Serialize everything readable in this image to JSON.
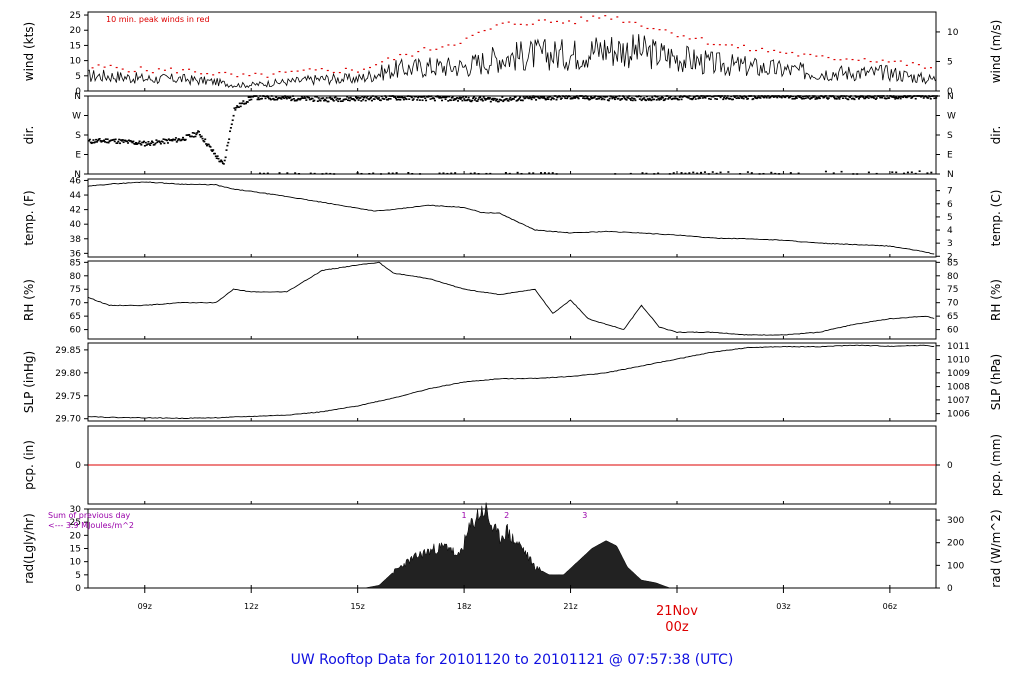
{
  "footer_title": "UW Rooftop Data for 20101120  to  20101121 @ 07:57:38  (UTC)",
  "colors": {
    "axis": "#000000",
    "peak": "#dd0000",
    "zero_line": "#dd0000",
    "annot": "#9900aa",
    "footer": "#1010e0",
    "fill": "#222222"
  },
  "x_axis": {
    "hours_range": [
      7.4,
      31.3
    ],
    "ticks": [
      {
        "h": 9,
        "label": "09z"
      },
      {
        "h": 12,
        "label": "12z"
      },
      {
        "h": 15,
        "label": "15z"
      },
      {
        "h": 18,
        "label": "18z"
      },
      {
        "h": 21,
        "label": "21z"
      },
      {
        "h": 24,
        "label": ""
      },
      {
        "h": 27,
        "label": "03z"
      },
      {
        "h": 30,
        "label": "06z"
      }
    ],
    "date_marker": {
      "h": 24,
      "date": "21Nov",
      "time": "00z"
    }
  },
  "chart_data": [
    {
      "type": "line",
      "id": "wind",
      "ylabel": "wind (kts)",
      "ylabel_right": "wind (m/s)",
      "ylim": [
        0,
        26
      ],
      "yticks": [
        0,
        5,
        10,
        15,
        20,
        25
      ],
      "right_ticks": [
        {
          "v": 0,
          "label": "0"
        },
        {
          "v": 9.72,
          "label": "5"
        },
        {
          "v": 19.44,
          "label": "10"
        }
      ],
      "annotation": "10 min. peak winds in red",
      "series": [
        {
          "role": "mean",
          "x": [
            7.4,
            8,
            9,
            10,
            11,
            11.5,
            12,
            13,
            14,
            15,
            16,
            17,
            18,
            19,
            20,
            21,
            22,
            23,
            24,
            25,
            26,
            27,
            28,
            29,
            30,
            31,
            31.3
          ],
          "y": [
            5,
            5,
            4,
            4,
            3,
            2,
            2,
            3,
            4,
            4,
            7,
            8,
            8,
            11,
            12,
            12,
            14,
            13,
            11,
            9,
            8,
            7,
            6,
            6,
            6,
            4,
            4
          ]
        },
        {
          "role": "peak",
          "x": [
            7.4,
            8,
            9,
            10,
            11,
            11.5,
            12,
            13,
            14,
            15,
            16,
            17,
            18,
            19,
            20,
            21,
            22,
            23,
            24,
            25,
            26,
            27,
            28,
            29,
            30,
            31,
            31.3
          ],
          "y": [
            8,
            8,
            7,
            7,
            6,
            5,
            5,
            6,
            7,
            7,
            11,
            14,
            17,
            22,
            23,
            23,
            25,
            22,
            19,
            16,
            14,
            13,
            11,
            11,
            10,
            8,
            8
          ]
        }
      ]
    },
    {
      "type": "scatter",
      "id": "dir",
      "ylabel": "dir.",
      "ylabel_right": "dir.",
      "ylim": [
        0,
        360
      ],
      "ytick_labels": [
        {
          "v": 0,
          "label": "N"
        },
        {
          "v": 90,
          "label": "E"
        },
        {
          "v": 180,
          "label": "S"
        },
        {
          "v": 270,
          "label": "W"
        },
        {
          "v": 360,
          "label": "N"
        }
      ],
      "right_tick_labels": [
        {
          "v": 0,
          "label": "N"
        },
        {
          "v": 90,
          "label": "E"
        },
        {
          "v": 180,
          "label": "S"
        },
        {
          "v": 270,
          "label": "W"
        },
        {
          "v": 360,
          "label": "N"
        }
      ],
      "series": [
        {
          "role": "main",
          "x": [
            7.4,
            8,
            9,
            10,
            10.5,
            11,
            11.2,
            11.5,
            12,
            13,
            14,
            15,
            16,
            17,
            18,
            19,
            20,
            21,
            22,
            23,
            24,
            25,
            26,
            27,
            28,
            29,
            30,
            31,
            31.3
          ],
          "y": [
            150,
            155,
            140,
            160,
            190,
            80,
            40,
            300,
            355,
            350,
            345,
            348,
            352,
            350,
            346,
            344,
            350,
            355,
            350,
            350,
            352,
            356,
            354,
            358,
            356,
            355,
            357,
            358,
            358
          ]
        },
        {
          "role": "low",
          "x": [
            12,
            13,
            14,
            15,
            16,
            17,
            18,
            19,
            20,
            21,
            22,
            23,
            24,
            25,
            26,
            27,
            28,
            29,
            30,
            31
          ],
          "y": [
            8,
            6,
            4,
            6,
            5,
            7,
            4,
            6,
            8,
            5,
            4,
            6,
            8,
            10,
            12,
            10,
            12,
            14,
            12,
            14
          ]
        }
      ]
    },
    {
      "type": "line",
      "id": "temp",
      "ylabel": "temp. (F)",
      "ylabel_right": "temp. (C)",
      "ylim": [
        35.5,
        46.2
      ],
      "yticks": [
        36,
        38,
        40,
        42,
        44,
        46
      ],
      "right_ticks": [
        {
          "v": 35.6,
          "label": "2"
        },
        {
          "v": 37.4,
          "label": "3"
        },
        {
          "v": 39.2,
          "label": "4"
        },
        {
          "v": 41.0,
          "label": "5"
        },
        {
          "v": 42.8,
          "label": "6"
        },
        {
          "v": 44.6,
          "label": "7"
        }
      ],
      "series": [
        {
          "role": "main",
          "x": [
            7.4,
            8,
            9,
            10,
            11,
            11.5,
            12,
            13,
            14,
            15,
            15.5,
            16,
            17,
            18,
            18.5,
            19,
            20,
            21,
            22,
            23,
            24,
            25,
            26,
            27,
            28,
            29,
            30,
            31,
            31.3
          ],
          "y": [
            45.2,
            45.5,
            45.8,
            45.5,
            45.4,
            44.8,
            44.5,
            43.8,
            43.0,
            42.2,
            41.8,
            42.0,
            42.6,
            42.3,
            41.6,
            41.5,
            39.2,
            38.8,
            39.0,
            38.8,
            38.5,
            38.1,
            38.0,
            37.8,
            37.4,
            37.2,
            37.0,
            36.2,
            35.8
          ]
        }
      ]
    },
    {
      "type": "line",
      "id": "rh",
      "ylabel": "RH (%)",
      "ylabel_right": "RH (%)",
      "ylim": [
        56.5,
        85.5
      ],
      "yticks": [
        60,
        65,
        70,
        75,
        80,
        85
      ],
      "right_ticks": [
        {
          "v": 60,
          "label": "60"
        },
        {
          "v": 65,
          "label": "65"
        },
        {
          "v": 70,
          "label": "70"
        },
        {
          "v": 75,
          "label": "75"
        },
        {
          "v": 80,
          "label": "80"
        },
        {
          "v": 85,
          "label": "85"
        }
      ],
      "series": [
        {
          "role": "main",
          "x": [
            7.4,
            8,
            9,
            10,
            11,
            11.5,
            12,
            13,
            14,
            15,
            15.6,
            16,
            17,
            18,
            19,
            19.5,
            20,
            20.5,
            21,
            21.5,
            22,
            22.5,
            23,
            23.5,
            24,
            25,
            26,
            27,
            28,
            29,
            30,
            31,
            31.3
          ],
          "y": [
            72,
            69,
            69,
            70,
            70,
            75,
            74,
            74,
            82,
            84,
            85,
            81,
            79,
            75,
            73,
            74,
            75,
            66,
            71,
            64,
            62,
            60,
            69,
            61,
            59,
            59,
            58,
            58,
            59,
            62,
            64,
            65,
            64
          ]
        }
      ]
    },
    {
      "type": "line",
      "id": "slp",
      "ylabel": "SLP (inHg)",
      "ylabel_right": "SLP (hPa)",
      "ylim": [
        29.695,
        29.865
      ],
      "yticks": [
        29.7,
        29.75,
        29.8,
        29.85
      ],
      "ytick_labels": [
        "29.70",
        "29.75",
        "29.80",
        "29.85"
      ],
      "right_ticks": [
        {
          "v": 29.711,
          "label": "1006"
        },
        {
          "v": 29.741,
          "label": "1007"
        },
        {
          "v": 29.77,
          "label": "1008"
        },
        {
          "v": 29.8,
          "label": "1009"
        },
        {
          "v": 29.829,
          "label": "1010"
        },
        {
          "v": 29.859,
          "label": "1011"
        }
      ],
      "series": [
        {
          "role": "main",
          "x": [
            7.4,
            8,
            9,
            10,
            11,
            12,
            13,
            14,
            15,
            16,
            17,
            18,
            19,
            20,
            21,
            22,
            23,
            24,
            25,
            26,
            27,
            28,
            29,
            30,
            31,
            31.3
          ],
          "y": [
            29.705,
            29.703,
            29.702,
            29.701,
            29.702,
            29.705,
            29.708,
            29.715,
            29.728,
            29.745,
            29.765,
            29.78,
            29.787,
            29.788,
            29.792,
            29.8,
            29.815,
            29.83,
            29.845,
            29.855,
            29.857,
            29.857,
            29.86,
            29.858,
            29.86,
            29.857
          ]
        }
      ]
    },
    {
      "type": "line",
      "id": "pcp",
      "ylabel": "pcp. (in)",
      "ylabel_right": "pcp. (mm)",
      "ylim": [
        -1,
        1
      ],
      "yticks": [
        0
      ],
      "right_ticks": [
        {
          "v": 0,
          "label": "0"
        }
      ],
      "series": [
        {
          "role": "zero",
          "x": [
            7.4,
            31.3
          ],
          "y": [
            0,
            0
          ]
        }
      ]
    },
    {
      "type": "area",
      "id": "rad",
      "ylabel": "rad(Lgly/hr)",
      "ylabel_right": "rad (W/m^2)",
      "ylim": [
        0,
        30
      ],
      "yticks": [
        0,
        5,
        10,
        15,
        20,
        25,
        30
      ],
      "right_ticks": [
        {
          "v": 0,
          "label": "0"
        },
        {
          "v": 8.6,
          "label": "100"
        },
        {
          "v": 17.2,
          "label": "200"
        },
        {
          "v": 25.8,
          "label": "300"
        }
      ],
      "annotations": [
        "Sum of previous day",
        "<--- 3.9 MJoules/m^2"
      ],
      "markers": [
        {
          "h": 18,
          "label": "1"
        },
        {
          "h": 19.2,
          "label": "2"
        },
        {
          "h": 21.4,
          "label": "3"
        }
      ],
      "series": [
        {
          "role": "main",
          "x": [
            15.2,
            15.6,
            16,
            16.4,
            16.8,
            17.2,
            17.6,
            17.8,
            18,
            18.2,
            18.4,
            18.6,
            18.7,
            18.8,
            19,
            19.2,
            19.4,
            19.6,
            19.8,
            20,
            20.4,
            20.8,
            21.2,
            21.6,
            22,
            22.3,
            22.6,
            23,
            23.4,
            23.8
          ],
          "y": [
            0,
            1,
            6,
            10,
            13,
            15,
            16,
            11,
            17,
            24,
            28,
            30,
            26,
            23,
            19,
            22,
            18,
            16,
            12,
            8,
            5,
            5,
            10,
            15,
            18,
            16,
            8,
            3,
            2,
            0
          ]
        }
      ]
    }
  ]
}
